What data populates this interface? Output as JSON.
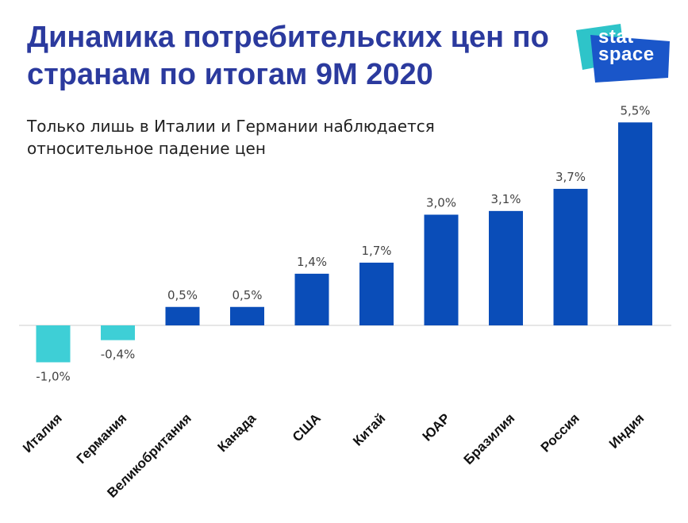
{
  "header": {
    "title": "Динамика потребительских цен по странам по итогам 9М 2020",
    "subtitle": "Только лишь в Италии и Германии наблюдается относительное падение цен"
  },
  "logo": {
    "line1": "stat",
    "line2": "space",
    "colors": [
      "#2ec4c9",
      "#1a56c9"
    ]
  },
  "chart_data": {
    "type": "bar",
    "categories": [
      "Италия",
      "Германия",
      "Великобритания",
      "Канада",
      "США",
      "Китай",
      "ЮАР",
      "Бразилия",
      "Россия",
      "Индия"
    ],
    "values": [
      -1.0,
      -0.4,
      0.5,
      0.5,
      1.4,
      1.7,
      3.0,
      3.1,
      3.7,
      5.5
    ],
    "value_labels": [
      "-1,0%",
      "-0,4%",
      "0,5%",
      "0,5%",
      "1,4%",
      "1,7%",
      "3,0%",
      "3,1%",
      "3,7%",
      "5,5%"
    ],
    "colors": {
      "negative": "#3ecfd6",
      "positive": "#0a4db8",
      "baseline": "#cccccc"
    },
    "grid": false,
    "legend": "none"
  }
}
